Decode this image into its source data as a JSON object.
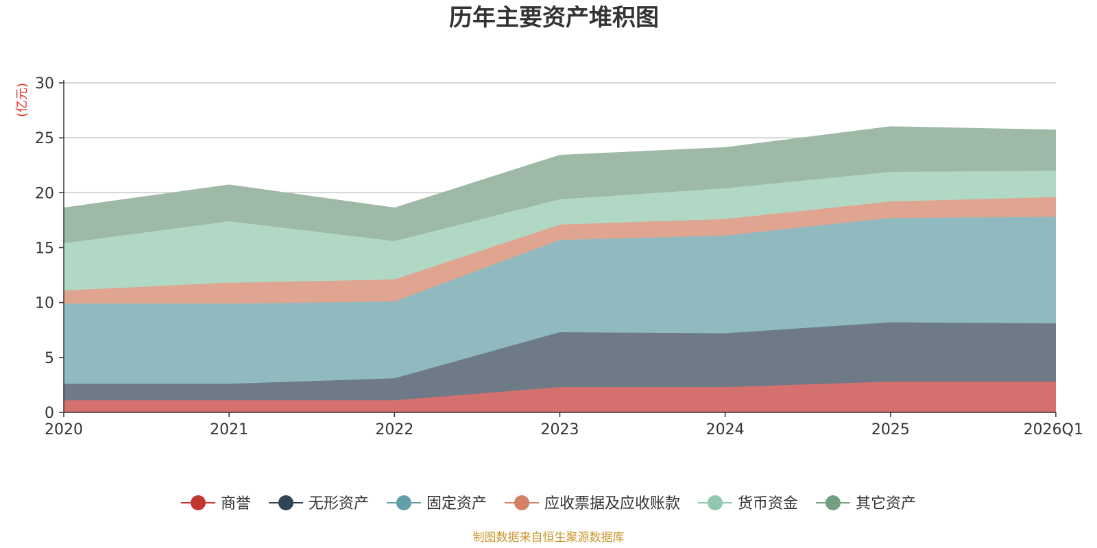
{
  "chart_data": {
    "type": "area",
    "stacked": true,
    "title": "历年主要资产堆积图",
    "ylabel": "(亿元)",
    "xlabel": "",
    "ylim": [
      0,
      30
    ],
    "yticks": [
      0,
      5,
      10,
      15,
      20,
      25,
      30
    ],
    "grid": true,
    "legend_position": "bottom",
    "categories": [
      "2020",
      "2021",
      "2022",
      "2023",
      "2024",
      "2025",
      "2026Q1"
    ],
    "series": [
      {
        "name": "商誉",
        "color": "#c23531",
        "area_color": "#d4706e",
        "values": [
          1.1,
          1.1,
          1.1,
          2.3,
          2.3,
          2.8,
          2.8
        ]
      },
      {
        "name": "无形资产",
        "color": "#2f4554",
        "area_color": "#6e7b86",
        "values": [
          1.5,
          1.5,
          2.0,
          5.0,
          4.9,
          5.4,
          5.3
        ]
      },
      {
        "name": "固定资产",
        "color": "#61a0a8",
        "area_color": "#90bac0",
        "values": [
          7.3,
          7.3,
          7.0,
          8.4,
          8.9,
          9.5,
          9.7
        ]
      },
      {
        "name": "应收票据及应收账款",
        "color": "#d48265",
        "area_color": "#e0a590",
        "values": [
          1.2,
          1.9,
          2.0,
          1.4,
          1.5,
          1.5,
          1.8
        ]
      },
      {
        "name": "货币资金",
        "color": "#91c7ae",
        "area_color": "#b0d8c5",
        "values": [
          4.3,
          5.6,
          3.5,
          2.3,
          2.8,
          2.7,
          2.4
        ]
      },
      {
        "name": "其它资产",
        "color": "#749f83",
        "area_color": "#9eb9a6",
        "values": [
          3.2,
          3.3,
          3.0,
          4.0,
          3.7,
          4.1,
          3.7
        ]
      }
    ],
    "source": "制图数据来自恒生聚源数据库"
  }
}
